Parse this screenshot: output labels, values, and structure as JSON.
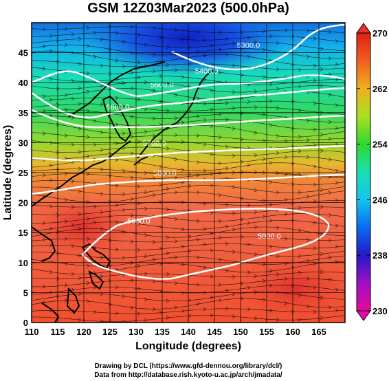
{
  "title": "GSM 12Z03Mar2023 (500.0hPa)",
  "xlabel": "Longitude (degrees)",
  "ylabel": "Latitude  (degrees)",
  "credit_line1": "Drawing by DCL (https://www.gfd-dennou.org/library/dcl/)",
  "credit_line2": "Data from http://database.rish.kyoto-u.ac.jp/arch/jmadata/",
  "chart_data": {
    "type": "heatmap",
    "xlim": [
      110,
      170
    ],
    "ylim": [
      0,
      50
    ],
    "x_ticks": [
      110,
      115,
      120,
      125,
      130,
      135,
      140,
      145,
      150,
      155,
      160,
      165
    ],
    "y_ticks": [
      0,
      5,
      10,
      15,
      20,
      25,
      30,
      35,
      40,
      45
    ],
    "colorbar": {
      "min": 230,
      "max": 270,
      "ticks": [
        230,
        238,
        246,
        254,
        262,
        270
      ]
    },
    "contours": [
      {
        "label": "5300.0",
        "lon": 151.5,
        "lat": 45.8
      },
      {
        "label": "5400.0",
        "lon": 143.5,
        "lat": 41.5
      },
      {
        "label": "5500.0",
        "lon": 135.0,
        "lat": 39.2
      },
      {
        "label": "5600.0",
        "lon": 126.5,
        "lat": 35.5
      },
      {
        "label": "5700.0",
        "lon": 133.5,
        "lat": 29.5
      },
      {
        "label": "5800.0",
        "lon": 135.5,
        "lat": 24.5
      },
      {
        "label": "5900.0",
        "lon": 130.5,
        "lat": 16.5
      },
      {
        "label": "5900.0",
        "lon": 155.5,
        "lat": 14.0
      }
    ],
    "grid": true
  }
}
